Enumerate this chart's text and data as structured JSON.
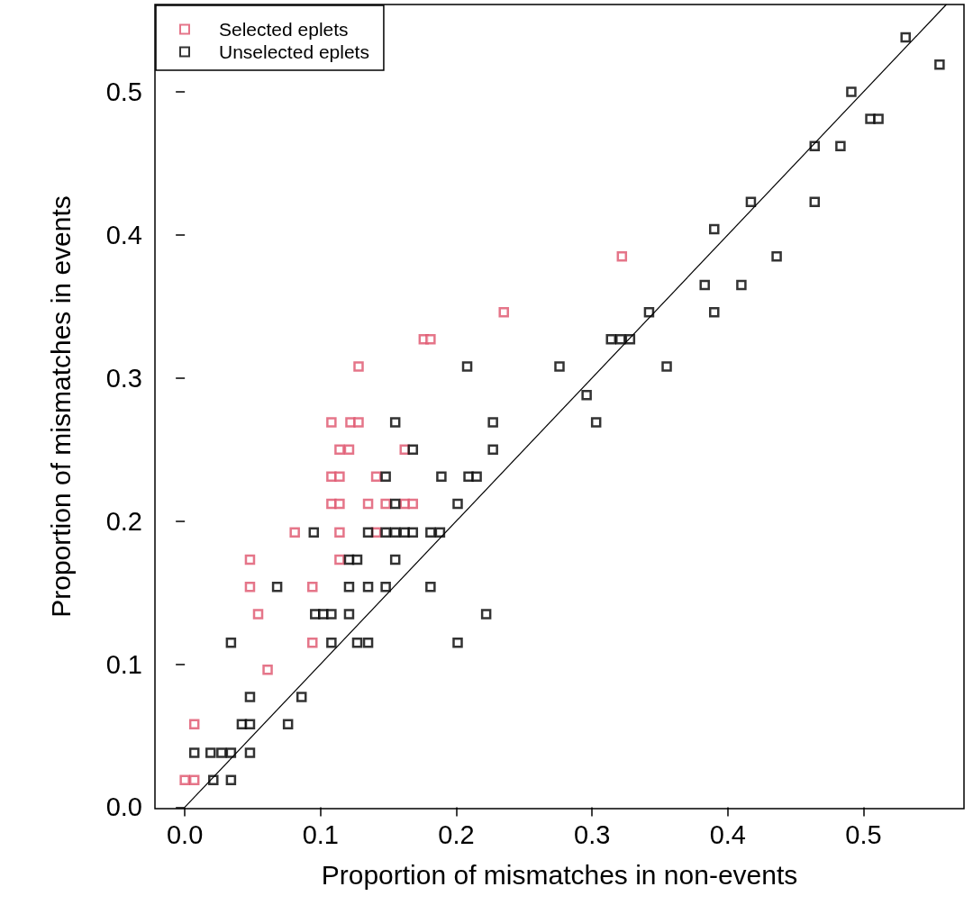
{
  "chart_data": {
    "type": "scatter",
    "xlabel": "Proportion of mismatches in non-events",
    "ylabel": "Proportion of mismatches in events",
    "xlim": [
      -0.022,
      0.574
    ],
    "ylim": [
      -0.001,
      0.561
    ],
    "xticks": [
      {
        "value": 0,
        "label": "0.0"
      },
      {
        "value": 0.1,
        "label": "0.1"
      },
      {
        "value": 0.2,
        "label": "0.2"
      },
      {
        "value": 0.3,
        "label": "0.3"
      },
      {
        "value": 0.4,
        "label": "0.4"
      },
      {
        "value": 0.5,
        "label": "0.5"
      }
    ],
    "yticks": [
      {
        "value": 0,
        "label": "0.0"
      },
      {
        "value": 0.1,
        "label": "0.1"
      },
      {
        "value": 0.2,
        "label": "0.2"
      },
      {
        "value": 0.3,
        "label": "0.3"
      },
      {
        "value": 0.4,
        "label": "0.4"
      },
      {
        "value": 0.5,
        "label": "0.5"
      }
    ],
    "grid": false,
    "legend": "top left",
    "marker": "square",
    "series": [
      {
        "name": "Selected eplets",
        "color": "#df536b",
        "x": [
          0.0,
          0.007,
          0.007,
          0.061,
          0.094,
          0.054,
          0.048,
          0.094,
          0.048,
          0.114,
          0.081,
          0.114,
          0.141,
          0.108,
          0.114,
          0.135,
          0.148,
          0.162,
          0.168,
          0.108,
          0.114,
          0.141,
          0.114,
          0.121,
          0.162,
          0.108,
          0.122,
          0.128,
          0.128,
          0.176,
          0.181,
          0.235,
          0.322
        ],
        "values": [
          0.019,
          0.019,
          0.058,
          0.096,
          0.115,
          0.135,
          0.154,
          0.154,
          0.173,
          0.173,
          0.192,
          0.192,
          0.192,
          0.212,
          0.212,
          0.212,
          0.212,
          0.212,
          0.212,
          0.231,
          0.231,
          0.231,
          0.25,
          0.25,
          0.25,
          0.269,
          0.269,
          0.269,
          0.308,
          0.327,
          0.327,
          0.346,
          0.385
        ]
      },
      {
        "name": "Unselected eplets",
        "color": "#000000",
        "x": [
          0.021,
          0.034,
          0.007,
          0.019,
          0.027,
          0.034,
          0.048,
          0.042,
          0.048,
          0.076,
          0.048,
          0.086,
          0.034,
          0.108,
          0.127,
          0.135,
          0.201,
          0.096,
          0.102,
          0.108,
          0.121,
          0.222,
          0.068,
          0.121,
          0.135,
          0.148,
          0.181,
          0.121,
          0.127,
          0.155,
          0.095,
          0.135,
          0.148,
          0.155,
          0.162,
          0.168,
          0.181,
          0.188,
          0.155,
          0.201,
          0.148,
          0.189,
          0.209,
          0.215,
          0.168,
          0.227,
          0.155,
          0.227,
          0.303,
          0.296,
          0.208,
          0.276,
          0.355,
          0.314,
          0.321,
          0.328,
          0.342,
          0.39,
          0.383,
          0.41,
          0.436,
          0.39,
          0.417,
          0.464,
          0.464,
          0.483,
          0.505,
          0.511,
          0.491,
          0.556,
          0.531
        ],
        "values": [
          0.019,
          0.019,
          0.038,
          0.038,
          0.038,
          0.038,
          0.038,
          0.058,
          0.058,
          0.058,
          0.077,
          0.077,
          0.115,
          0.115,
          0.115,
          0.115,
          0.115,
          0.135,
          0.135,
          0.135,
          0.135,
          0.135,
          0.154,
          0.154,
          0.154,
          0.154,
          0.154,
          0.173,
          0.173,
          0.173,
          0.192,
          0.192,
          0.192,
          0.192,
          0.192,
          0.192,
          0.192,
          0.192,
          0.212,
          0.212,
          0.231,
          0.231,
          0.231,
          0.231,
          0.25,
          0.25,
          0.269,
          0.269,
          0.269,
          0.288,
          0.308,
          0.308,
          0.308,
          0.327,
          0.327,
          0.327,
          0.346,
          0.346,
          0.365,
          0.365,
          0.385,
          0.404,
          0.423,
          0.423,
          0.462,
          0.462,
          0.481,
          0.481,
          0.5,
          0.519,
          0.538
        ]
      },
      {
        "type": "line",
        "color": "#000000",
        "marker": "none",
        "x": [
          0,
          0.561
        ],
        "values": [
          0,
          0.561
        ]
      }
    ]
  }
}
